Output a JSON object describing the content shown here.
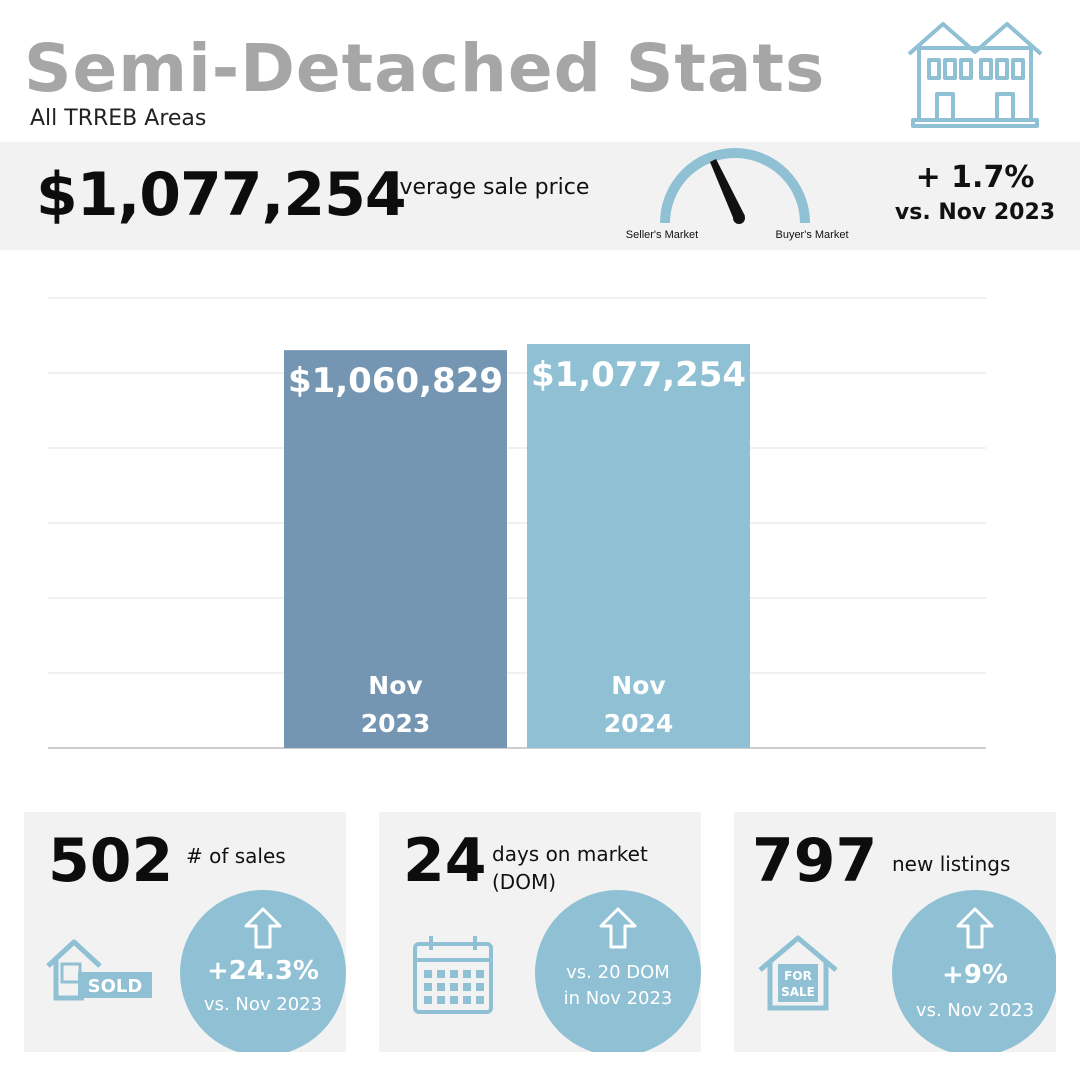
{
  "header": {
    "title": "Semi-Detached Stats",
    "subtitle": "All TRREB Areas",
    "logo_icon": "semi-detached-house-icon"
  },
  "banner": {
    "price": "$1,077,254",
    "price_label": "average sale price",
    "gauge_left_label": "Seller's Market",
    "gauge_right_label": "Buyer's Market",
    "change_pct": "+ 1.7%",
    "change_vs": "vs. Nov 2023"
  },
  "chart_data": {
    "type": "bar",
    "categories": [
      "Nov 2023",
      "Nov 2024"
    ],
    "category_lines": [
      [
        "Nov",
        "2023"
      ],
      [
        "Nov",
        "2024"
      ]
    ],
    "values": [
      1060829,
      1077254
    ],
    "value_labels": [
      "$1,060,829",
      "$1,077,254"
    ],
    "colors": [
      "#7496b2",
      "#8fc0d4"
    ],
    "grid": true
  },
  "cards": [
    {
      "number": "502",
      "label_lines": [
        "# of sales"
      ],
      "circle_big": "+24.3%",
      "circle_small_lines": [
        "vs. Nov 2023"
      ],
      "icon": "sold-house-icon",
      "icon_text": "SOLD"
    },
    {
      "number": "24",
      "label_lines": [
        "days on market",
        "(DOM)"
      ],
      "circle_big": "",
      "circle_small_lines": [
        "vs. 20 DOM",
        "in Nov 2023"
      ],
      "icon": "calendar-icon",
      "icon_text": ""
    },
    {
      "number": "797",
      "label_lines": [
        "new listings"
      ],
      "circle_big": "+9%",
      "circle_small_lines": [
        "vs. Nov 2023"
      ],
      "icon": "for-sale-house-icon",
      "icon_text": "FOR SALE"
    }
  ],
  "colors": {
    "title_gray": "#a6a6a6",
    "accent_blue": "#8fc0d4",
    "dark_blue": "#7496b2",
    "panel_gray": "#f2f2f2"
  }
}
